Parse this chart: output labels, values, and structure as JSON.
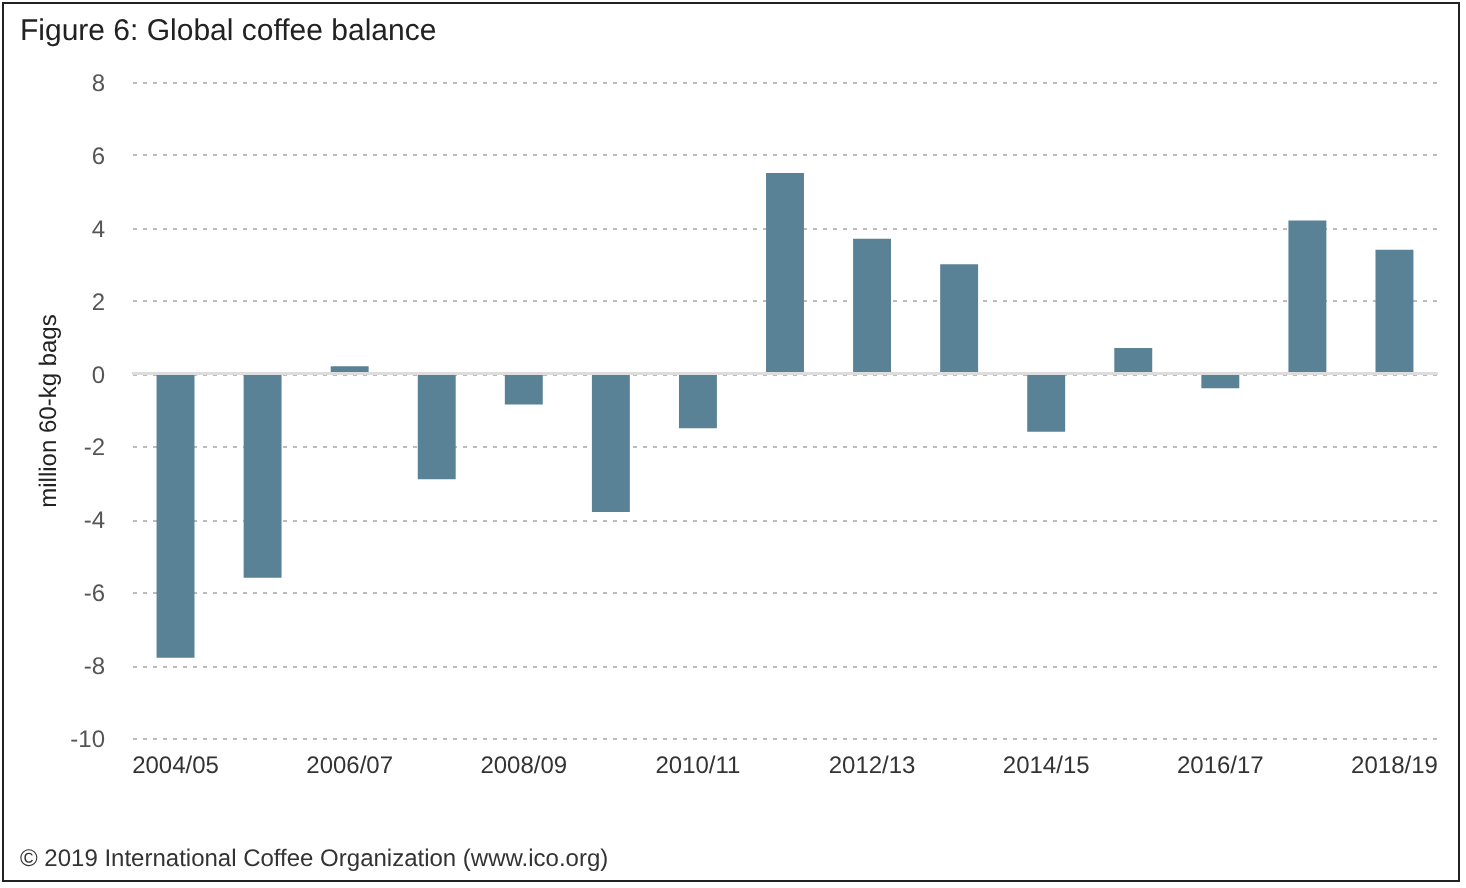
{
  "chart_data": {
    "type": "bar",
    "title": "Figure 6: Global coffee balance",
    "ylabel": "million 60-kg bags",
    "categories": [
      "2004/05",
      null,
      "2006/07",
      null,
      "2008/09",
      null,
      "2010/11",
      null,
      "2012/13",
      null,
      "2014/15",
      null,
      "2016/17",
      null,
      "2018/19"
    ],
    "values": [
      -7.8,
      -5.6,
      0.2,
      -2.9,
      -0.85,
      -3.8,
      -1.5,
      5.5,
      3.7,
      3.0,
      -1.6,
      0.7,
      -0.4,
      4.2,
      3.4
    ],
    "color": "#5a8296",
    "ylim": [
      -10,
      8
    ],
    "yticks": [
      -10,
      -8,
      -6,
      -4,
      -2,
      0,
      2,
      4,
      6,
      8
    ],
    "grid": "y",
    "annotations": [
      "© 2019 International Coffee Organization (www.ico.org)"
    ]
  }
}
